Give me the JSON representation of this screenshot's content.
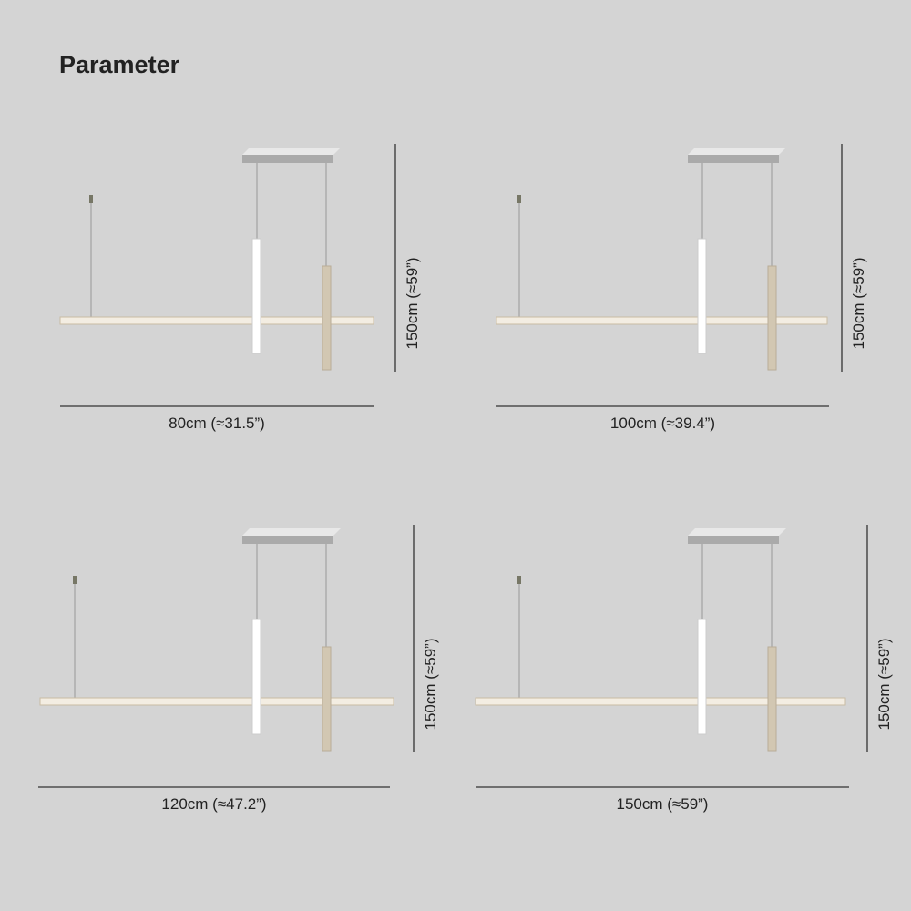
{
  "header": {
    "title": "Parameter"
  },
  "panels": [
    {
      "width_label": "80cm (≈31.5”)",
      "height_label": "150cm (≈59”)"
    },
    {
      "width_label": "100cm (≈39.4”)",
      "height_label": "150cm (≈59”)"
    },
    {
      "width_label": "120cm (≈47.2”)",
      "height_label": "150cm (≈59”)"
    },
    {
      "width_label": "150cm (≈59”)",
      "height_label": "150cm (≈59”)"
    }
  ]
}
